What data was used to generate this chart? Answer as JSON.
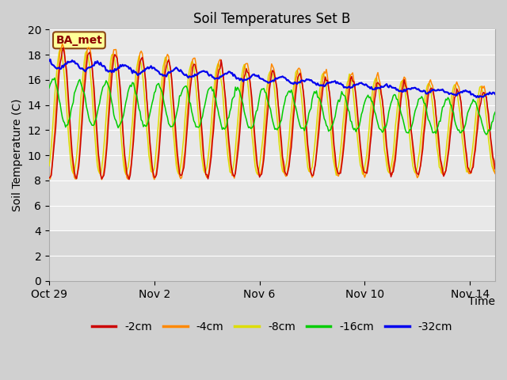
{
  "title": "Soil Temperatures Set B",
  "xlabel": "Time",
  "ylabel": "Soil Temperature (C)",
  "ylim": [
    0,
    20
  ],
  "yticks": [
    0,
    2,
    4,
    6,
    8,
    10,
    12,
    14,
    16,
    18,
    20
  ],
  "date_labels": [
    "Oct 29",
    "Nov 2",
    "Nov 6",
    "Nov 10",
    "Nov 14"
  ],
  "annotation": "BA_met",
  "colors": {
    "-2cm": "#cc0000",
    "-4cm": "#ff8800",
    "-8cm": "#dddd00",
    "-16cm": "#00cc00",
    "-32cm": "#0000ee"
  },
  "legend_labels": [
    "-2cm",
    "-4cm",
    "-8cm",
    "-16cm",
    "-32cm"
  ],
  "fig_bg_color": "#d0d0d0",
  "plot_bg_upper": "#e8e8e8",
  "plot_bg_lower": "#d8d8d8",
  "title_fontsize": 12,
  "axis_fontsize": 10,
  "legend_fontsize": 10
}
